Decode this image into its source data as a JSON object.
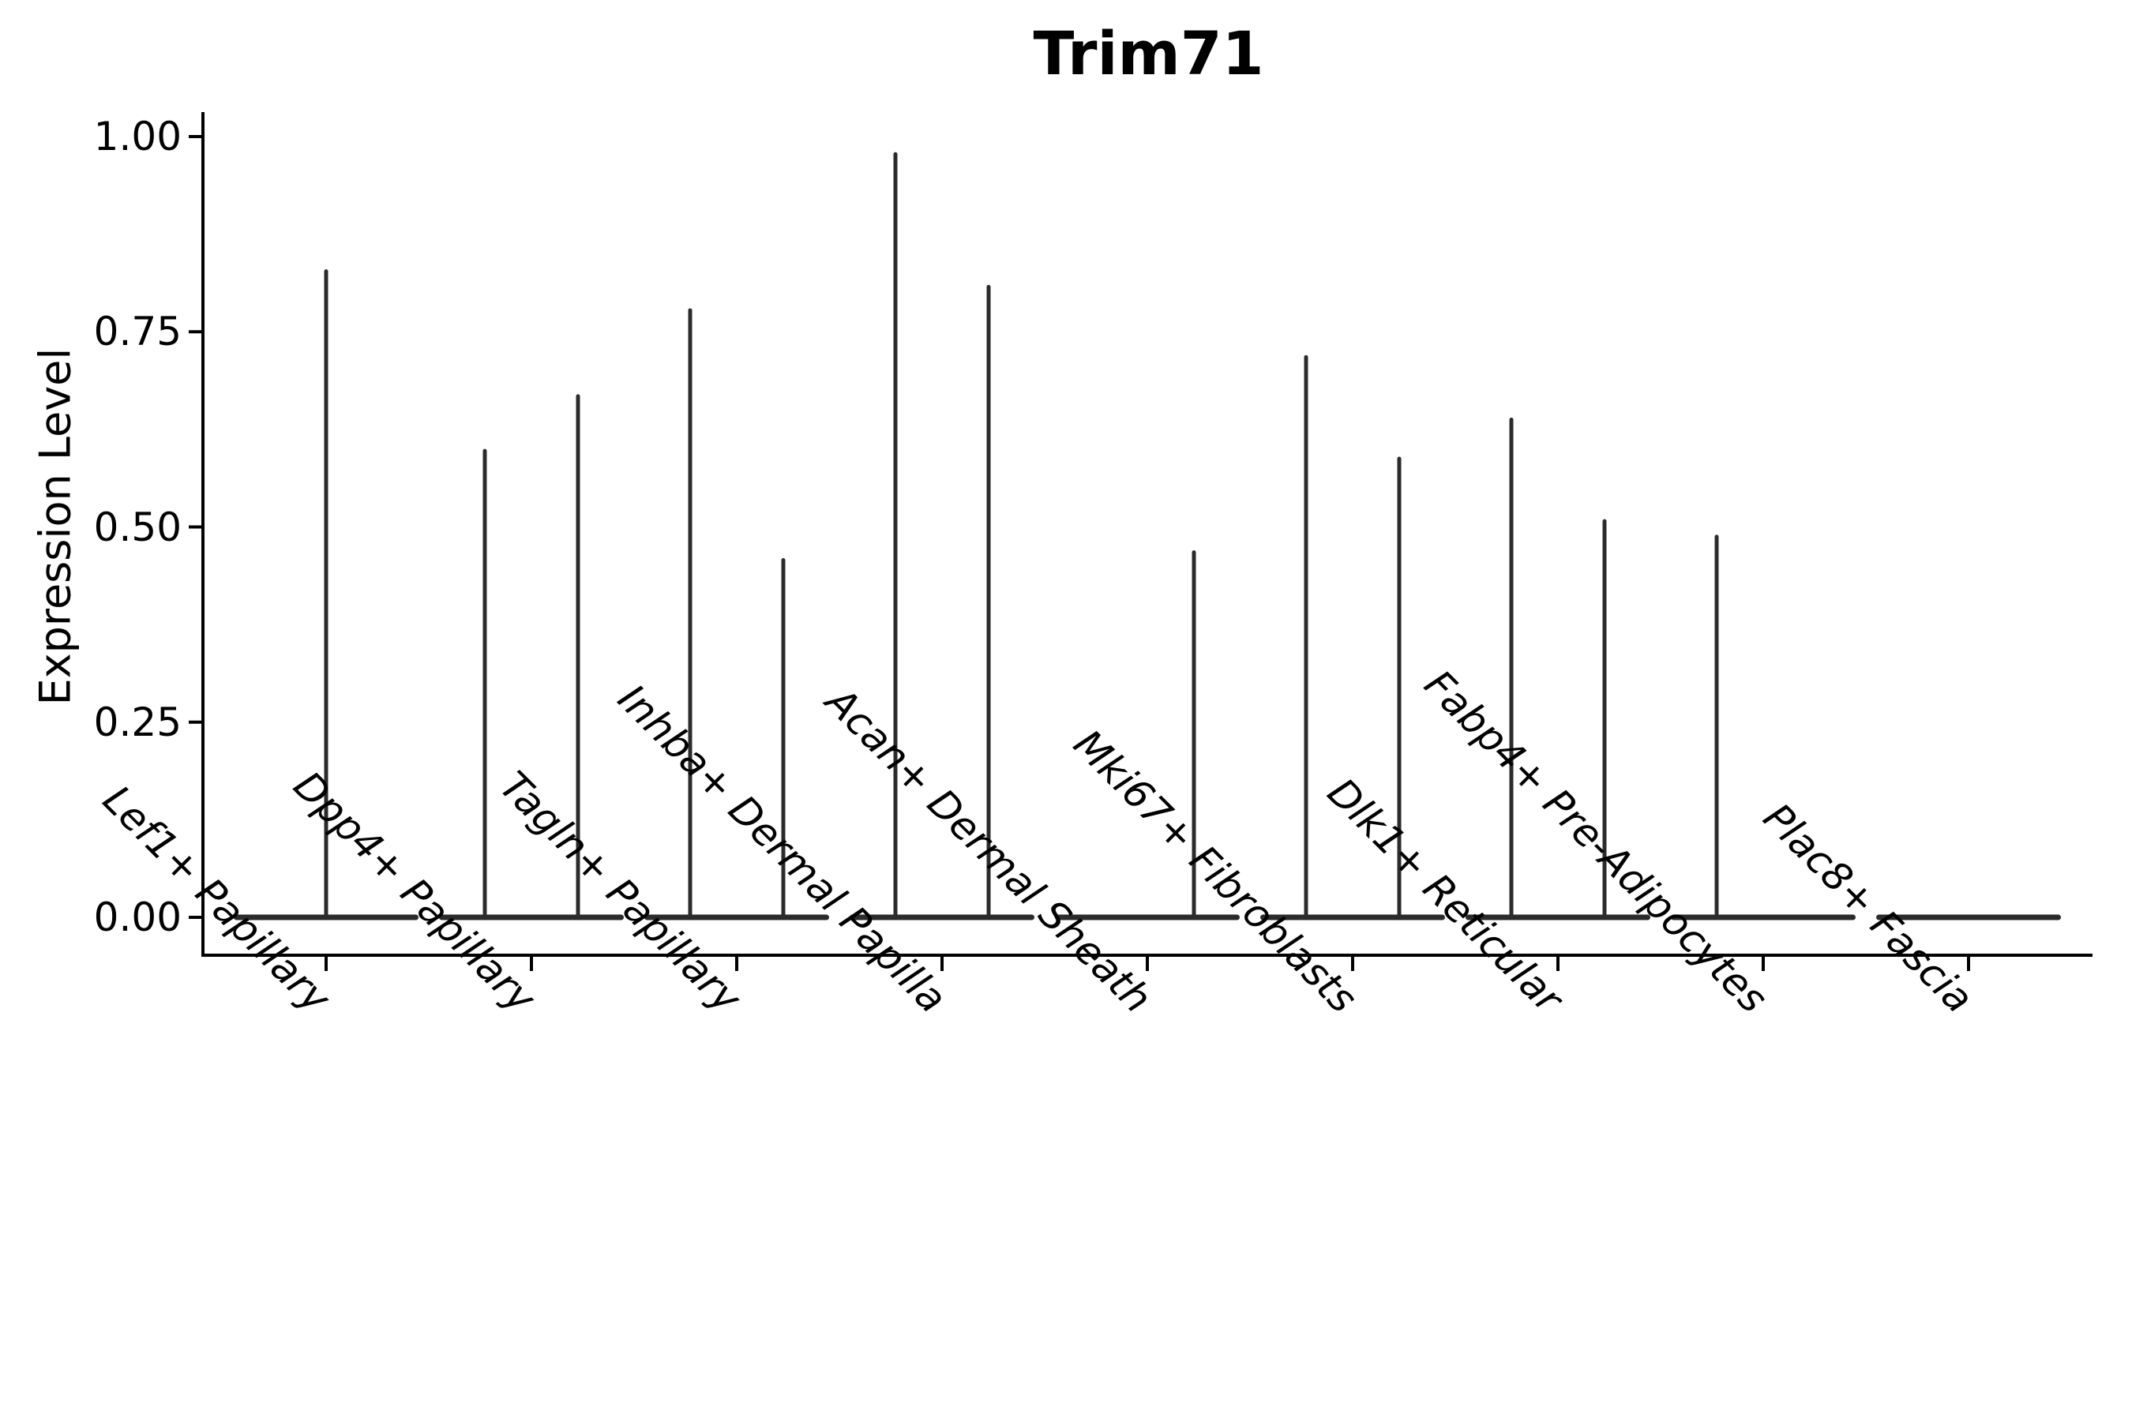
{
  "title": "Trim71",
  "axes": {
    "ylabel": "Expression Level"
  },
  "chart_data": {
    "type": "violin",
    "title": "Trim71",
    "xlabel": "",
    "ylabel": "Expression Level",
    "ylim": [
      -0.05,
      1.03
    ],
    "grid": false,
    "legend": "none",
    "violin_color": "#2b2b2b",
    "axis_color": "#000000",
    "yticks": [
      {
        "value": 0.0,
        "label": "0.00"
      },
      {
        "value": 0.25,
        "label": "0.25"
      },
      {
        "value": 0.5,
        "label": "0.50"
      },
      {
        "value": 0.75,
        "label": "0.75"
      },
      {
        "value": 1.0,
        "label": "1.00"
      }
    ],
    "categories": [
      "Lef1+ Papillary",
      "Dpp4+ Papillary",
      "Tagln+ Papillary",
      "Inhba+ Dermal Papilla",
      "Acan+ Dermal Sheath",
      "Mki67+ Fibroblasts",
      "Dlk1+ Reticular",
      "Fabp4+ Pre-Adipocytes",
      "Plac8+ Fascia"
    ],
    "groups": [
      {
        "category": "Lef1+ Papillary",
        "violins": [
          {
            "position": "center",
            "max_expression": 0.83
          }
        ]
      },
      {
        "category": "Dpp4+ Papillary",
        "violins": [
          {
            "position": "left",
            "max_expression": 0.6
          },
          {
            "position": "right",
            "max_expression": 0.67
          }
        ]
      },
      {
        "category": "Tagln+ Papillary",
        "violins": [
          {
            "position": "left",
            "max_expression": 0.78
          },
          {
            "position": "right",
            "max_expression": 0.46
          }
        ]
      },
      {
        "category": "Inhba+ Dermal Papilla",
        "violins": [
          {
            "position": "left",
            "max_expression": 0.98
          },
          {
            "position": "right",
            "max_expression": 0.81
          }
        ]
      },
      {
        "category": "Acan+ Dermal Sheath",
        "violins": [
          {
            "position": "left",
            "max_expression": 0.0
          },
          {
            "position": "right",
            "max_expression": 0.47
          }
        ]
      },
      {
        "category": "Mki67+ Fibroblasts",
        "violins": [
          {
            "position": "left",
            "max_expression": 0.72
          },
          {
            "position": "right",
            "max_expression": 0.59
          }
        ]
      },
      {
        "category": "Dlk1+ Reticular",
        "violins": [
          {
            "position": "left",
            "max_expression": 0.64
          },
          {
            "position": "right",
            "max_expression": 0.51
          }
        ]
      },
      {
        "category": "Fabp4+ Pre-Adipocytes",
        "violins": [
          {
            "position": "left",
            "max_expression": 0.49
          },
          {
            "position": "right",
            "max_expression": 0.0
          }
        ]
      },
      {
        "category": "Plac8+ Fascia",
        "violins": [
          {
            "position": "center",
            "max_expression": 0.0
          }
        ]
      }
    ]
  }
}
